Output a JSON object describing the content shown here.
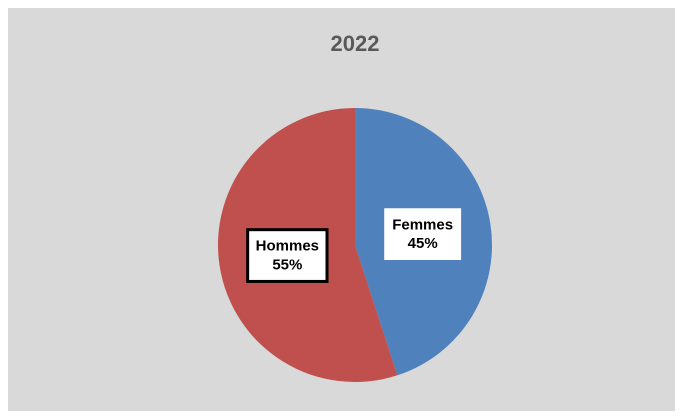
{
  "chart_data": {
    "type": "pie",
    "title": "2022",
    "categories": [
      "Femmes",
      "Hommes"
    ],
    "values": [
      45,
      55
    ],
    "value_labels": [
      "45%",
      "55%"
    ],
    "colors": [
      "#4f81bd",
      "#c0504d"
    ],
    "start_angle": 0,
    "direction": "clockwise"
  }
}
